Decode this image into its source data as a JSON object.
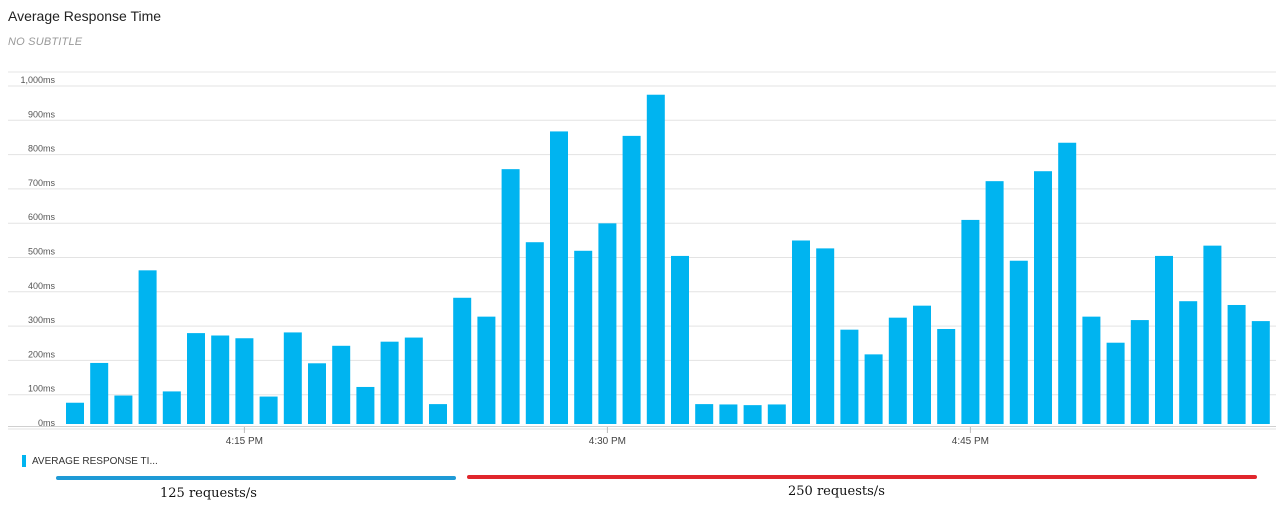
{
  "header": {
    "title": "Average Response Time",
    "subtitle": "NO SUBTITLE"
  },
  "legend": {
    "label": "AVERAGE RESPONSE TI...",
    "color": "#00b4f0"
  },
  "annotations": [
    {
      "label": "125 requests/s",
      "color": "#1e9ad6"
    },
    {
      "label": "250 requests/s",
      "color": "#e0262c"
    }
  ],
  "chart_data": {
    "type": "bar",
    "title": "Average Response Time",
    "ylim": [
      0,
      1000
    ],
    "y_unit": "ms",
    "yticks": [
      "0ms",
      "100ms",
      "200ms",
      "300ms",
      "400ms",
      "500ms",
      "600ms",
      "700ms",
      "800ms",
      "900ms",
      "1,000ms"
    ],
    "xticks": [
      "4:15 PM",
      "4:30 PM",
      "4:45 PM"
    ],
    "grid": true,
    "bar_color": "#00b4f0",
    "series": [
      {
        "name": "AVERAGE RESPONSE TI...",
        "values": [
          62,
          178,
          83,
          448,
          95,
          265,
          258,
          250,
          80,
          267,
          177,
          228,
          108,
          240,
          252,
          58,
          368,
          313,
          743,
          530,
          853,
          505,
          585,
          840,
          960,
          490,
          58,
          57,
          55,
          57,
          535,
          512,
          275,
          203,
          310,
          345,
          277,
          595,
          708,
          476,
          737,
          820,
          313,
          237,
          303,
          490,
          358,
          520,
          347,
          300
        ]
      }
    ]
  }
}
